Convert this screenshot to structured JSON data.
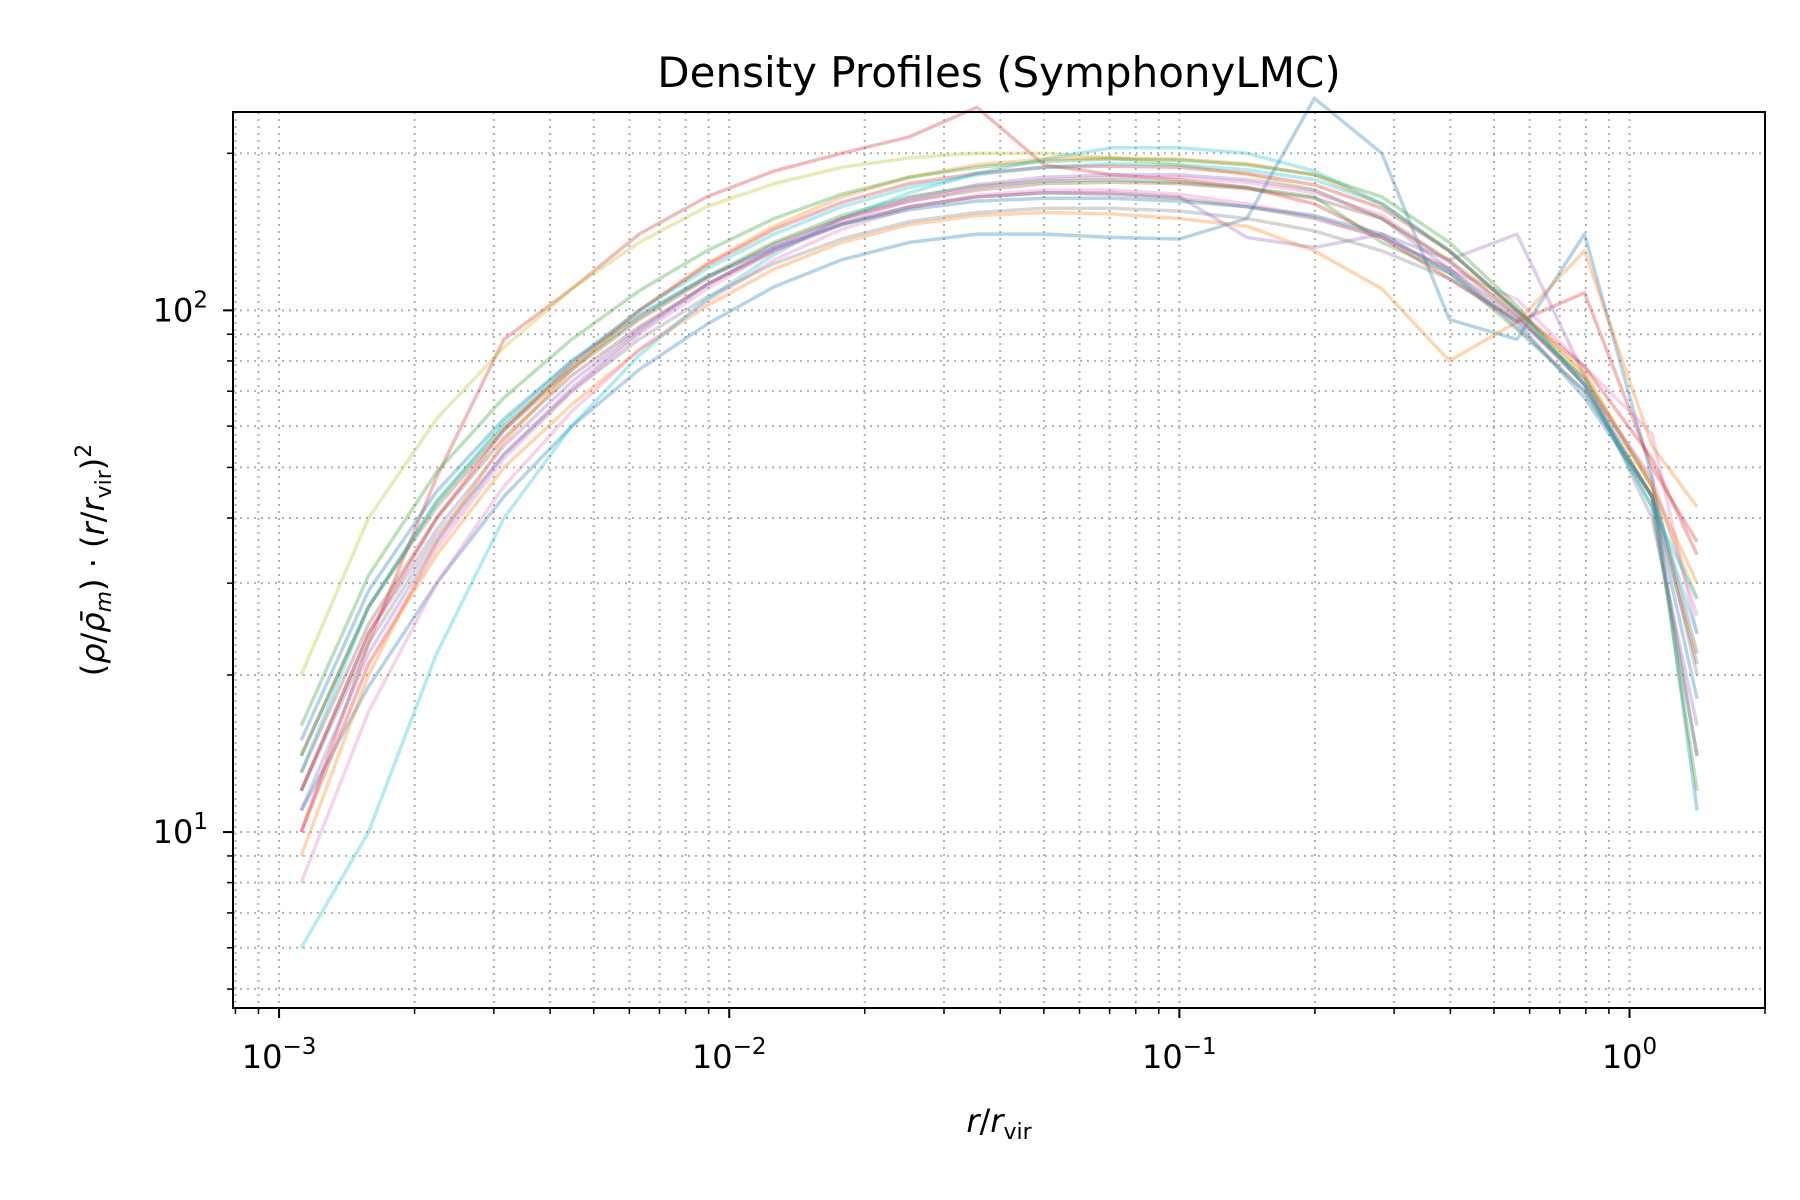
{
  "chart_data": {
    "type": "line",
    "title": "Density Profiles (SymphonyLMC)",
    "xlabel": "r/r_vir",
    "ylabel": "(ρ/ρ̄_m)·(r/r_vir)^2",
    "x_scale": "log",
    "y_scale": "log",
    "xlim": [
      0.00079,
      2.0
    ],
    "ylim": [
      4.6,
      240
    ],
    "grid": "on, both major and minor, dotted",
    "legend": "none",
    "x_ticks": [
      {
        "base": "10",
        "exp": "−3"
      },
      {
        "base": "10",
        "exp": "−2"
      },
      {
        "base": "10",
        "exp": "−1"
      },
      {
        "base": "10",
        "exp": "0"
      }
    ],
    "y_ticks": [
      {
        "base": "10",
        "exp": "1"
      },
      {
        "base": "10",
        "exp": "2"
      }
    ],
    "x": [
      0.00112,
      0.00158,
      0.00224,
      0.00316,
      0.00447,
      0.00631,
      0.00891,
      0.01259,
      0.01778,
      0.02512,
      0.03548,
      0.05012,
      0.07079,
      0.1,
      0.1413,
      0.1995,
      0.2818,
      0.3981,
      0.5623,
      0.7943,
      1.122,
      1.413
    ],
    "series": [
      {
        "color": "#1f77b4",
        "values": [
          11,
          19,
          30,
          44,
          60,
          77,
          94,
          111,
          125,
          135,
          140,
          140,
          138,
          137,
          150,
          255,
          200,
          96,
          88,
          140,
          48,
          11
        ]
      },
      {
        "color": "#ff7f0e",
        "values": [
          10,
          21,
          34,
          50,
          66,
          84,
          102,
          120,
          135,
          146,
          152,
          154,
          153,
          150,
          145,
          130,
          110,
          80,
          95,
          130,
          55,
          42
        ]
      },
      {
        "color": "#2ca02c",
        "values": [
          14,
          27,
          43,
          60,
          78,
          97,
          116,
          135,
          152,
          165,
          173,
          177,
          178,
          176,
          172,
          165,
          135,
          118,
          92,
          70,
          44,
          12
        ]
      },
      {
        "color": "#d62728",
        "values": [
          10,
          23,
          48,
          88,
          110,
          140,
          165,
          185,
          200,
          215,
          245,
          190,
          182,
          178,
          172,
          160,
          138,
          115,
          95,
          108,
          50,
          36
        ]
      },
      {
        "color": "#9467bd",
        "values": [
          12,
          24,
          38,
          55,
          73,
          92,
          112,
          131,
          147,
          158,
          165,
          168,
          168,
          165,
          138,
          132,
          140,
          125,
          140,
          75,
          40,
          16
        ]
      },
      {
        "color": "#8c564b",
        "values": [
          13,
          25,
          40,
          57,
          75,
          93,
          112,
          130,
          146,
          158,
          165,
          168,
          167,
          164,
          158,
          150,
          138,
          120,
          97,
          74,
          46,
          22
        ]
      },
      {
        "color": "#e377c2",
        "values": [
          8,
          17,
          30,
          46,
          64,
          84,
          104,
          125,
          143,
          157,
          166,
          170,
          170,
          167,
          160,
          151,
          138,
          120,
          105,
          78,
          58,
          24
        ]
      },
      {
        "color": "#7f7f7f",
        "values": [
          12,
          23,
          37,
          53,
          70,
          88,
          106,
          123,
          137,
          148,
          154,
          157,
          157,
          155,
          150,
          142,
          130,
          115,
          96,
          74,
          47,
          20
        ]
      },
      {
        "color": "#bcbd22",
        "values": [
          20,
          40,
          62,
          85,
          110,
          135,
          158,
          175,
          188,
          196,
          200,
          200,
          196,
          190,
          182,
          170,
          150,
          125,
          100,
          75,
          46,
          28
        ]
      },
      {
        "color": "#17becf",
        "values": [
          6,
          10,
          22,
          40,
          60,
          82,
          105,
          128,
          150,
          168,
          183,
          195,
          205,
          205,
          200,
          185,
          160,
          130,
          100,
          72,
          44,
          24
        ]
      },
      {
        "color": "#1f77b4",
        "values": [
          15,
          29,
          45,
          62,
          80,
          98,
          116,
          132,
          146,
          156,
          162,
          164,
          164,
          162,
          158,
          152,
          140,
          118,
          95,
          68,
          44,
          18
        ]
      },
      {
        "color": "#ff7f0e",
        "values": [
          9,
          20,
          36,
          56,
          77,
          100,
          123,
          145,
          165,
          180,
          190,
          195,
          196,
          195,
          191,
          182,
          160,
          130,
          100,
          76,
          46,
          30
        ]
      },
      {
        "color": "#2ca02c",
        "values": [
          16,
          31,
          49,
          68,
          88,
          109,
          130,
          150,
          167,
          180,
          188,
          193,
          195,
          194,
          190,
          182,
          165,
          135,
          102,
          72,
          42,
          14
        ]
      },
      {
        "color": "#d62728",
        "values": [
          12,
          24,
          40,
          59,
          79,
          100,
          122,
          143,
          161,
          175,
          183,
          188,
          189,
          188,
          183,
          174,
          157,
          130,
          100,
          78,
          52,
          34
        ]
      },
      {
        "color": "#9467bd",
        "values": [
          11,
          22,
          36,
          53,
          71,
          91,
          112,
          132,
          150,
          164,
          174,
          180,
          182,
          182,
          178,
          170,
          150,
          120,
          93,
          70,
          44,
          14
        ]
      },
      {
        "color": "#8c564b",
        "values": [
          14,
          27,
          42,
          59,
          77,
          96,
          115,
          134,
          150,
          162,
          170,
          175,
          176,
          175,
          171,
          164,
          150,
          124,
          98,
          72,
          44,
          21
        ]
      },
      {
        "color": "#e377c2",
        "values": [
          10,
          21,
          35,
          52,
          70,
          90,
          110,
          130,
          148,
          162,
          172,
          178,
          180,
          180,
          176,
          168,
          152,
          124,
          98,
          72,
          48,
          26
        ]
      },
      {
        "color": "#17becf",
        "values": [
          13,
          27,
          43,
          61,
          80,
          100,
          120,
          140,
          158,
          172,
          182,
          188,
          191,
          190,
          186,
          178,
          160,
          130,
          100,
          72,
          42,
          28
        ]
      }
    ]
  }
}
